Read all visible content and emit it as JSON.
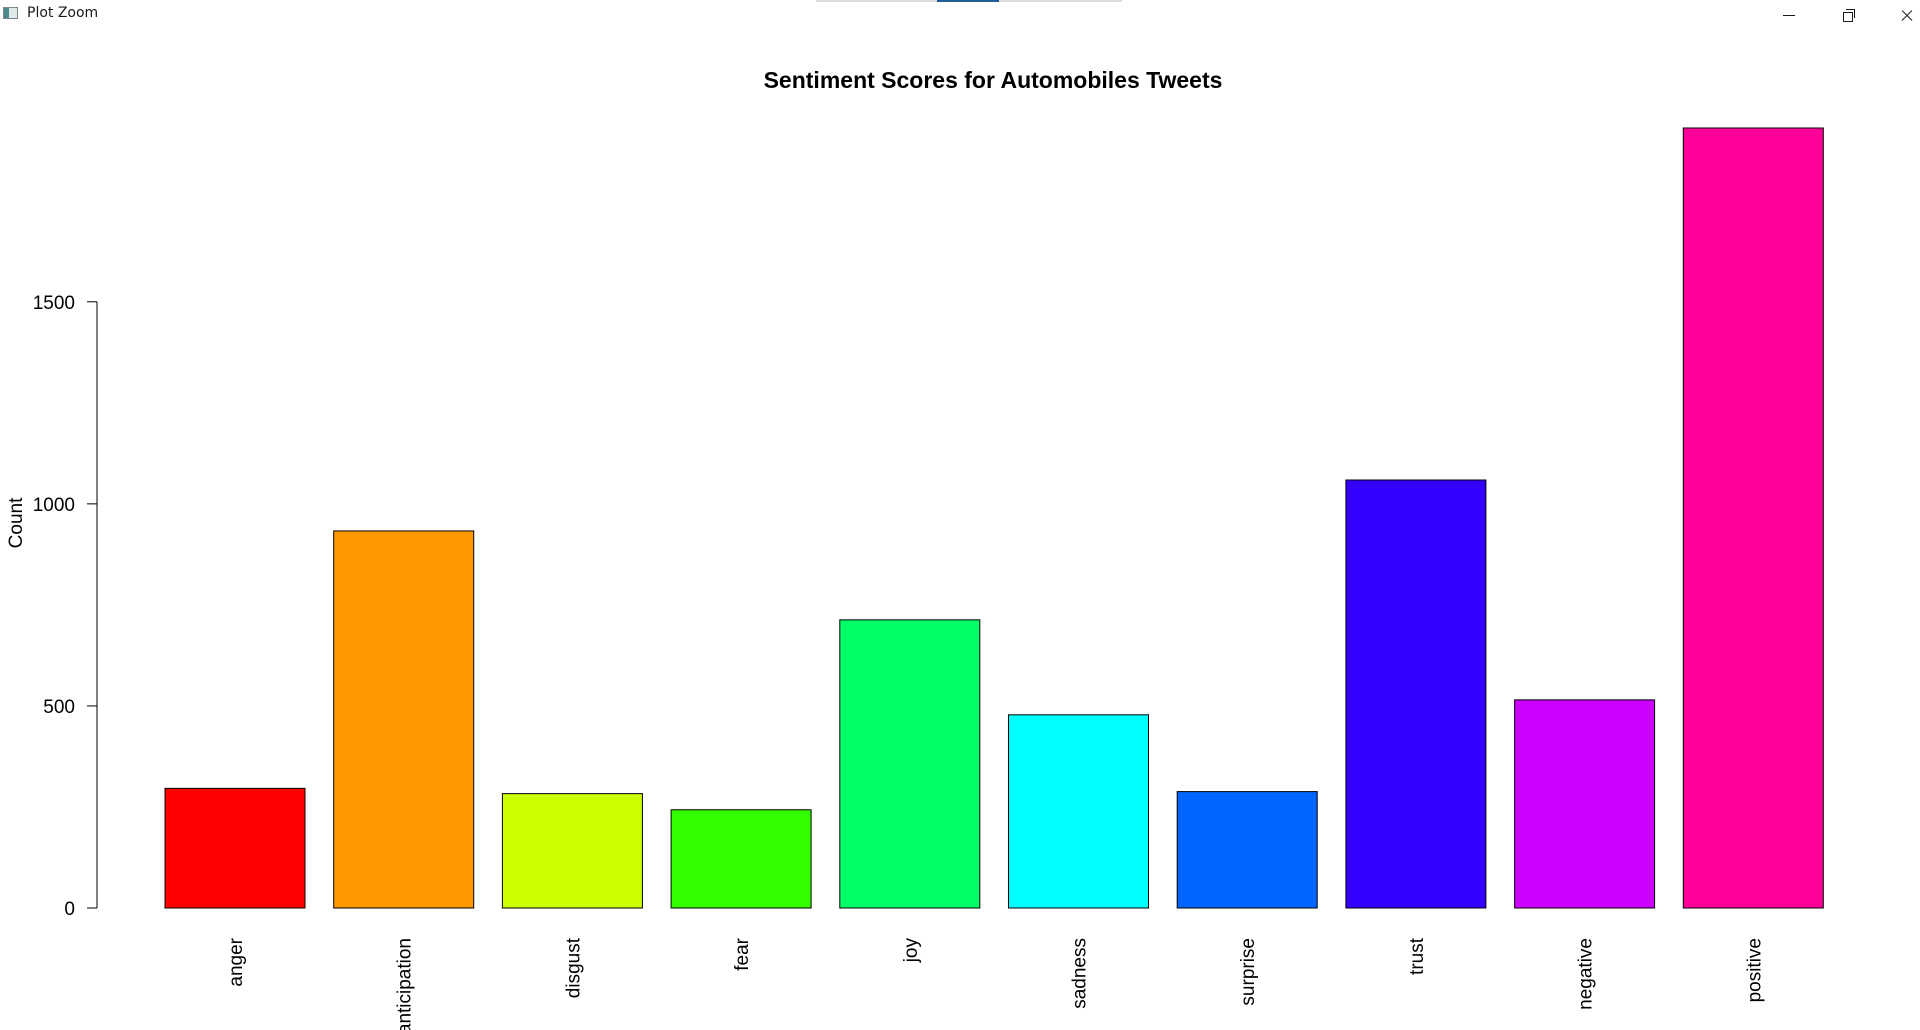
{
  "window": {
    "title": "Plot Zoom",
    "icon": "plot-zoom-app-icon",
    "controls": {
      "minimize_icon": "minimize-icon",
      "maximize_icon": "restore-icon",
      "close_icon": "close-icon"
    }
  },
  "chart_data": {
    "type": "bar",
    "title": "Sentiment Scores for Automobiles Tweets",
    "xlabel": "",
    "ylabel": "Count",
    "ylim": [
      0,
      1930
    ],
    "yticks": [
      0,
      500,
      1000,
      1500
    ],
    "categories": [
      "anger",
      "anticipation",
      "disgust",
      "fear",
      "joy",
      "sadness",
      "surprise",
      "trust",
      "negative",
      "positive"
    ],
    "values": [
      296,
      933,
      283,
      243,
      713,
      478,
      288,
      1059,
      515,
      1930
    ],
    "colors": [
      "#FF0000",
      "#FF9900",
      "#CCFF00",
      "#33FF00",
      "#00FF66",
      "#00FFFF",
      "#0066FF",
      "#3300FF",
      "#CC00FF",
      "#FF0099"
    ],
    "grid": false,
    "legend": "none",
    "x_tick_rotation": "vertical"
  }
}
